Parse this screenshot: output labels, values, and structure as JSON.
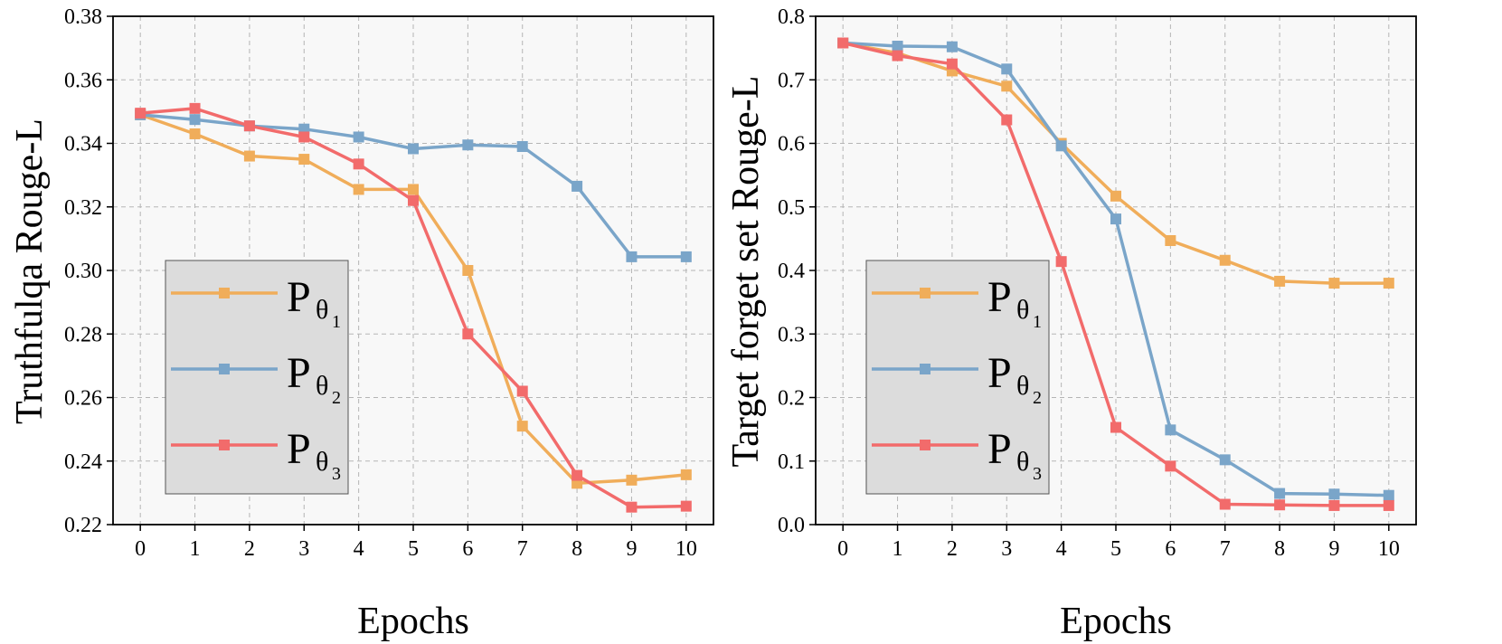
{
  "chart_data": [
    {
      "type": "line",
      "xlabel": "Epochs",
      "ylabel": "Truthfulqa Rouge-L",
      "x": [
        0,
        1,
        2,
        3,
        4,
        5,
        6,
        7,
        8,
        9,
        10
      ],
      "xlim": [
        -0.5,
        10.5
      ],
      "ylim": [
        0.22,
        0.38
      ],
      "yticks": [
        "0.22",
        "0.24",
        "0.26",
        "0.28",
        "0.30",
        "0.32",
        "0.34",
        "0.36",
        "0.38"
      ],
      "xticks": [
        "0",
        "1",
        "2",
        "3",
        "4",
        "5",
        "6",
        "7",
        "8",
        "9",
        "10"
      ],
      "grid": true,
      "legend_position": "lower-left",
      "series": [
        {
          "name": "P",
          "sub1": "θ",
          "sub2": "1",
          "color": "#f0ad5a",
          "values": [
            0.349,
            0.343,
            0.336,
            0.335,
            0.3255,
            0.3255,
            0.3,
            0.251,
            0.233,
            0.234,
            0.2357
          ]
        },
        {
          "name": "P",
          "sub1": "θ",
          "sub2": "2",
          "color": "#7aa5c9",
          "values": [
            0.349,
            0.3475,
            0.3455,
            0.3445,
            0.342,
            0.3383,
            0.3395,
            0.339,
            0.3265,
            0.3043,
            0.3043
          ]
        },
        {
          "name": "P",
          "sub1": "θ",
          "sub2": "3",
          "color": "#f26b6b",
          "values": [
            0.3495,
            0.351,
            0.3455,
            0.342,
            0.3335,
            0.322,
            0.28,
            0.262,
            0.2355,
            0.2255,
            0.2258
          ]
        }
      ]
    },
    {
      "type": "line",
      "xlabel": "Epochs",
      "ylabel": "Target forget set Rouge-L",
      "x": [
        0,
        1,
        2,
        3,
        4,
        5,
        6,
        7,
        8,
        9,
        10
      ],
      "xlim": [
        -0.5,
        10.5
      ],
      "ylim": [
        0.0,
        0.8
      ],
      "yticks": [
        "0.0",
        "0.1",
        "0.2",
        "0.3",
        "0.4",
        "0.5",
        "0.6",
        "0.7",
        "0.8"
      ],
      "xticks": [
        "0",
        "1",
        "2",
        "3",
        "4",
        "5",
        "6",
        "7",
        "8",
        "9",
        "10"
      ],
      "grid": true,
      "legend_position": "lower-left",
      "series": [
        {
          "name": "P",
          "sub1": "θ",
          "sub2": "1",
          "color": "#f0ad5a",
          "values": [
            0.758,
            0.742,
            0.714,
            0.69,
            0.6,
            0.517,
            0.447,
            0.416,
            0.383,
            0.38,
            0.38
          ]
        },
        {
          "name": "P",
          "sub1": "θ",
          "sub2": "2",
          "color": "#7aa5c9",
          "values": [
            0.758,
            0.753,
            0.752,
            0.717,
            0.596,
            0.481,
            0.149,
            0.102,
            0.049,
            0.048,
            0.046
          ]
        },
        {
          "name": "P",
          "sub1": "θ",
          "sub2": "3",
          "color": "#f26b6b",
          "values": [
            0.758,
            0.738,
            0.725,
            0.637,
            0.414,
            0.153,
            0.092,
            0.032,
            0.031,
            0.03,
            0.03
          ]
        }
      ]
    }
  ]
}
